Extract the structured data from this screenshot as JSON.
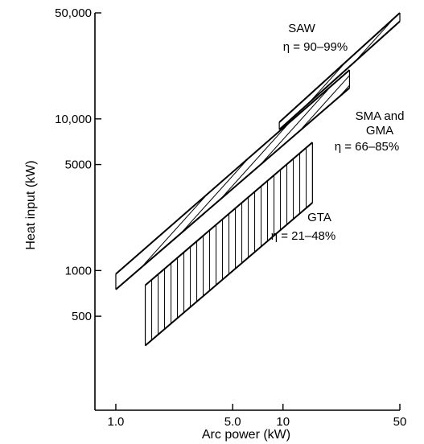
{
  "chart_data": {
    "type": "line",
    "title": "",
    "xlabel": "Arc power (kW)",
    "ylabel": "Heat input (kW)",
    "x_scale": "log",
    "y_scale": "log",
    "xlim": [
      0.75,
      50
    ],
    "ylim": [
      120,
      50000
    ],
    "x_ticks": [
      {
        "value": 1.0,
        "label": "1.0"
      },
      {
        "value": 5.0,
        "label": "5.0"
      },
      {
        "value": 10,
        "label": "10"
      },
      {
        "value": 50,
        "label": "50"
      }
    ],
    "y_ticks": [
      {
        "value": 500,
        "label": "500"
      },
      {
        "value": 1000,
        "label": "1000"
      },
      {
        "value": 5000,
        "label": "5000"
      },
      {
        "value": 10000,
        "label": "10,000"
      },
      {
        "value": 50000,
        "label": "50,000"
      }
    ],
    "grid": false,
    "series": [
      {
        "name": "SAW",
        "efficiency": "η = 90–99%",
        "hatch": "diagonal",
        "x_range": [
          9.5,
          50
        ],
        "upper": [
          [
            9.5,
            9500
          ],
          [
            50,
            50000
          ]
        ],
        "lower": [
          [
            9.5,
            8500
          ],
          [
            50,
            44000
          ]
        ]
      },
      {
        "name": "SMA and GMA",
        "efficiency": "η = 66–85%",
        "hatch": "diagonal",
        "x_range": [
          1.0,
          25
        ],
        "upper": [
          [
            1.0,
            950
          ],
          [
            25,
            21000
          ]
        ],
        "lower": [
          [
            1.0,
            750
          ],
          [
            25,
            16000
          ]
        ]
      },
      {
        "name": "GTA",
        "efficiency": "η = 21–48%",
        "hatch": "vertical",
        "x_range": [
          1.5,
          15
        ],
        "upper": [
          [
            1.5,
            800
          ],
          [
            15,
            7000
          ]
        ],
        "lower": [
          [
            1.5,
            320
          ],
          [
            15,
            2800
          ]
        ]
      }
    ]
  },
  "labels": {
    "saw_name": "SAW",
    "saw_eff": "η = 90–99%",
    "sma_name_line1": "SMA and",
    "sma_name_line2": "GMA",
    "sma_eff": "η = 66–85%",
    "gta_name": "GTA",
    "gta_eff": "η = 21–48%"
  }
}
